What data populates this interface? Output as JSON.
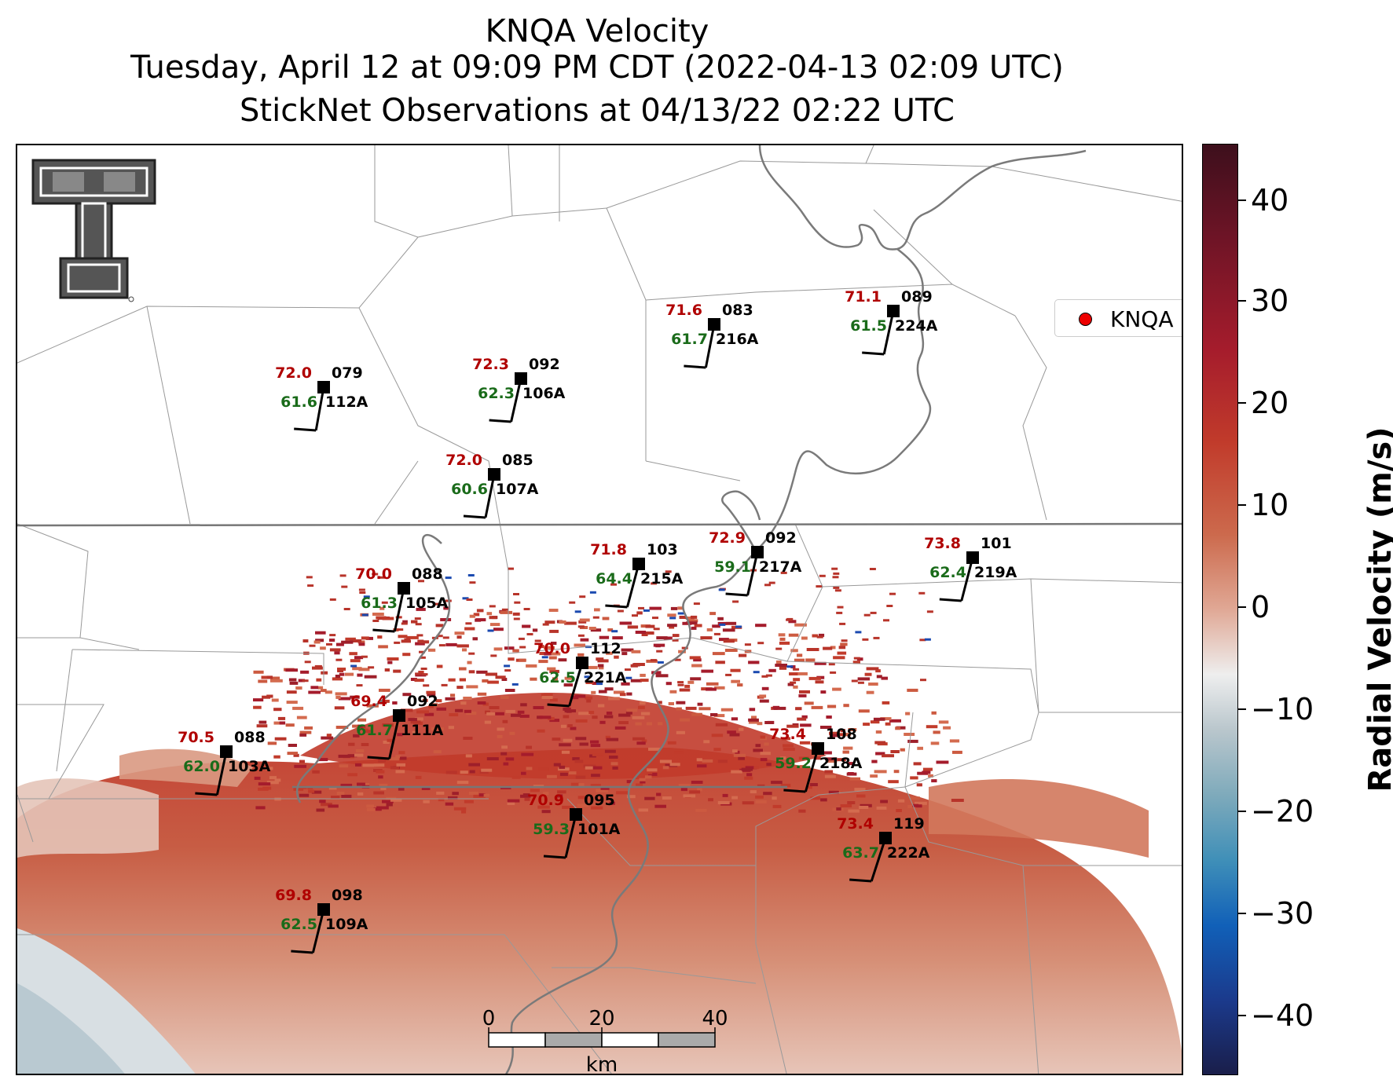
{
  "title": {
    "line1": "KNQA Velocity",
    "line2": "Tuesday, April 12 at 09:09 PM CDT (2022-04-13 02:09 UTC)",
    "line3": "StickNet Observations at 04/13/22 02:22 UTC"
  },
  "legend": {
    "label": "KNQA",
    "marker_color": "#e00000"
  },
  "colorbar": {
    "title": "Radial Velocity (m/s)",
    "ticks": [
      "40",
      "30",
      "20",
      "10",
      "0",
      "−10",
      "−20",
      "−30",
      "−40"
    ]
  },
  "scale_bar": {
    "ticks": [
      "0",
      "20",
      "40"
    ],
    "unit": "km"
  },
  "logo": {
    "name": "texas-tech-double-t-logo"
  },
  "stations": [
    {
      "id": "112A",
      "temp": "72.0",
      "dew": "61.6",
      "dir": "079"
    },
    {
      "id": "106A",
      "temp": "72.3",
      "dew": "62.3",
      "dir": "092"
    },
    {
      "id": "216A",
      "temp": "71.6",
      "dew": "61.7",
      "dir": "083"
    },
    {
      "id": "224A",
      "temp": "71.1",
      "dew": "61.5",
      "dir": "089"
    },
    {
      "id": "107A",
      "temp": "72.0",
      "dew": "60.6",
      "dir": "085"
    },
    {
      "id": "105A",
      "temp": "70.0",
      "dew": "61.3",
      "dir": "088"
    },
    {
      "id": "215A",
      "temp": "71.8",
      "dew": "64.4",
      "dir": "103"
    },
    {
      "id": "217A",
      "temp": "72.9",
      "dew": "59.1",
      "dir": "092"
    },
    {
      "id": "219A",
      "temp": "73.8",
      "dew": "62.4",
      "dir": "101"
    },
    {
      "id": "221A",
      "temp": "70.0",
      "dew": "62.5",
      "dir": "112"
    },
    {
      "id": "111A",
      "temp": "69.4",
      "dew": "61.7",
      "dir": "092"
    },
    {
      "id": "103A",
      "temp": "70.5",
      "dew": "62.0",
      "dir": "088"
    },
    {
      "id": "218A",
      "temp": "73.4",
      "dew": "59.2",
      "dir": "108"
    },
    {
      "id": "101A",
      "temp": "70.9",
      "dew": "59.3",
      "dir": "095"
    },
    {
      "id": "222A",
      "temp": "73.4",
      "dew": "63.7",
      "dir": "119"
    },
    {
      "id": "109A",
      "temp": "69.8",
      "dew": "62.5",
      "dir": "098"
    }
  ]
}
